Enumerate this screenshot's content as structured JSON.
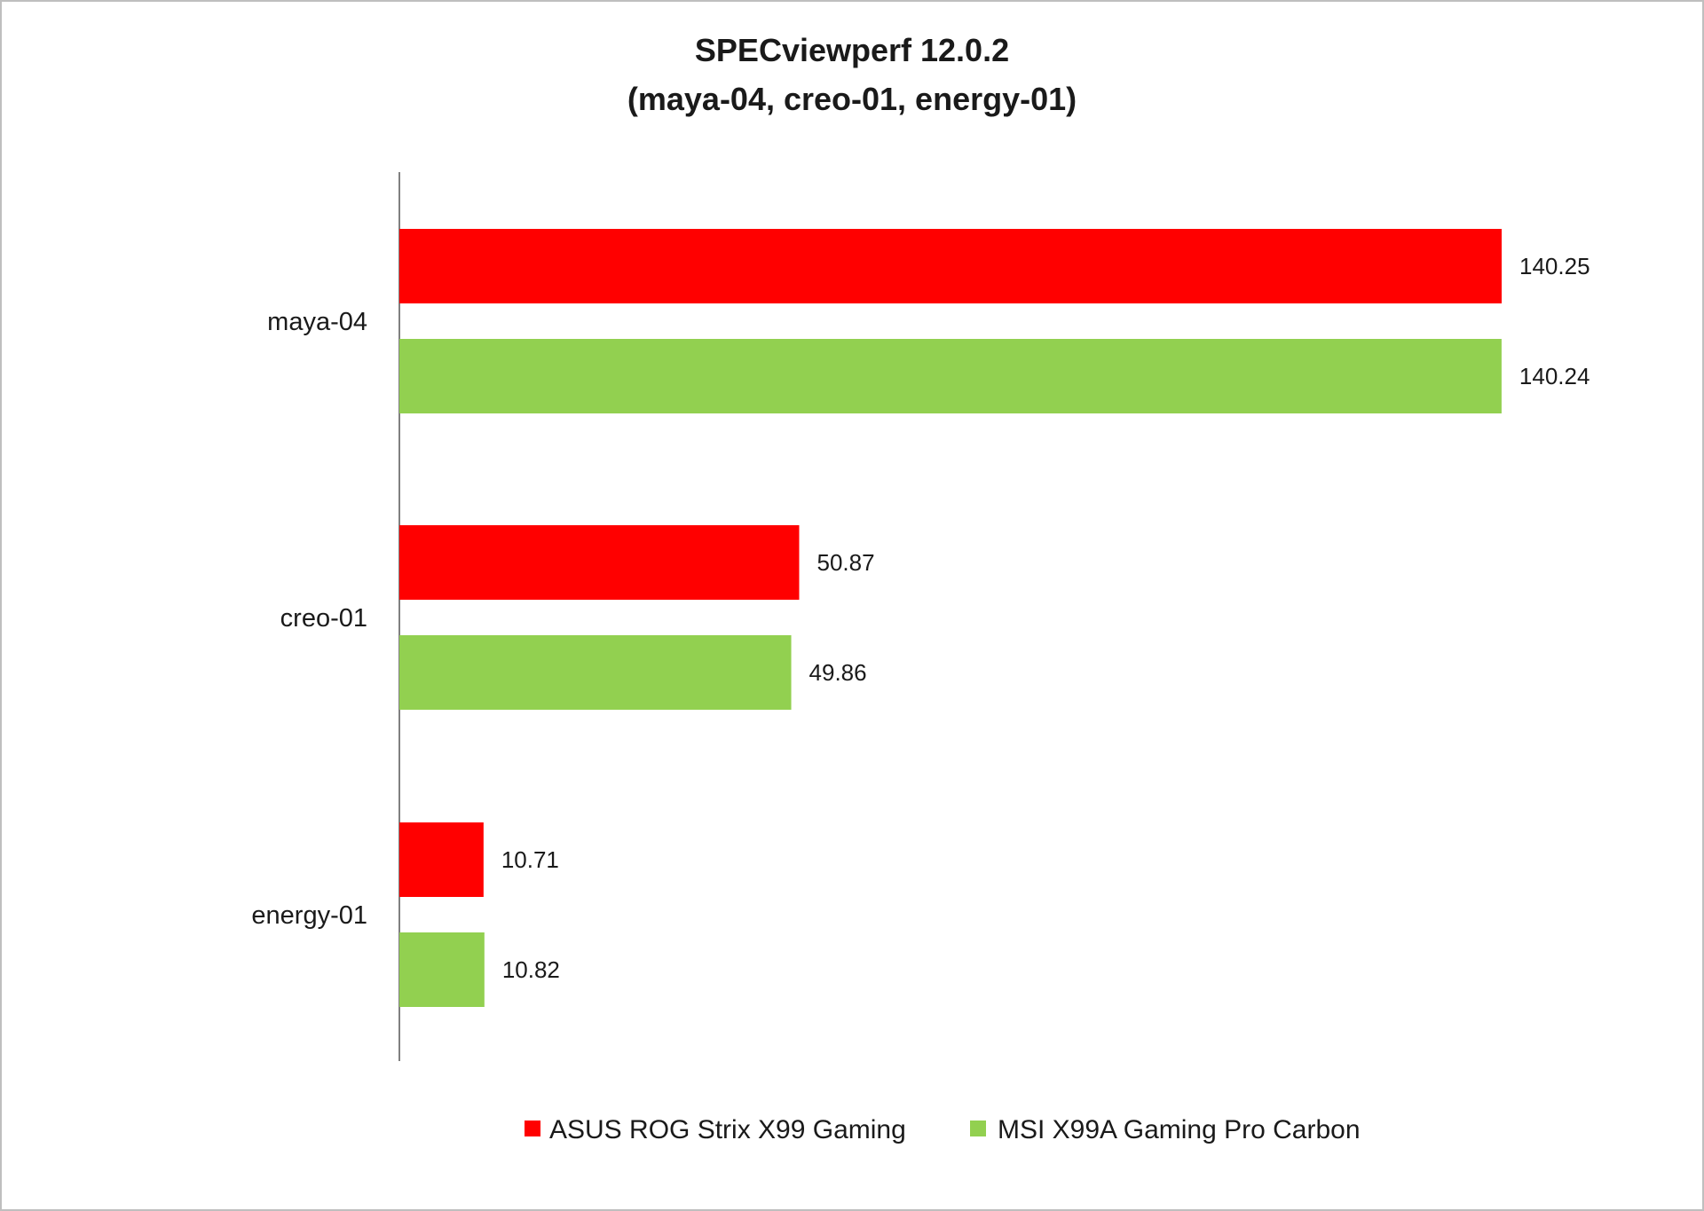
{
  "chart_data": {
    "type": "bar",
    "orientation": "horizontal",
    "title": [
      "SPECviewperf 12.0.2",
      "(maya-04, creo-01, energy-01)"
    ],
    "categories": [
      "maya-04",
      "creo-01",
      "energy-01"
    ],
    "series": [
      {
        "name": "ASUS ROG Strix X99 Gaming",
        "color": "#ff0000",
        "values": [
          140.25,
          50.87,
          10.71
        ]
      },
      {
        "name": "MSI X99A Gaming Pro Carbon",
        "color": "#92d050",
        "values": [
          140.24,
          49.86,
          10.82
        ]
      }
    ],
    "value_labels": {
      "ASUS ROG Strix X99 Gaming": [
        "140.25",
        "50.87",
        "10.71"
      ],
      "MSI X99A Gaming Pro Carbon": [
        "140.24",
        "49.86",
        "10.82"
      ]
    },
    "xlim": [
      0,
      140.25
    ],
    "axis_color": "#808080",
    "grid": false,
    "legend_position": "bottom"
  }
}
